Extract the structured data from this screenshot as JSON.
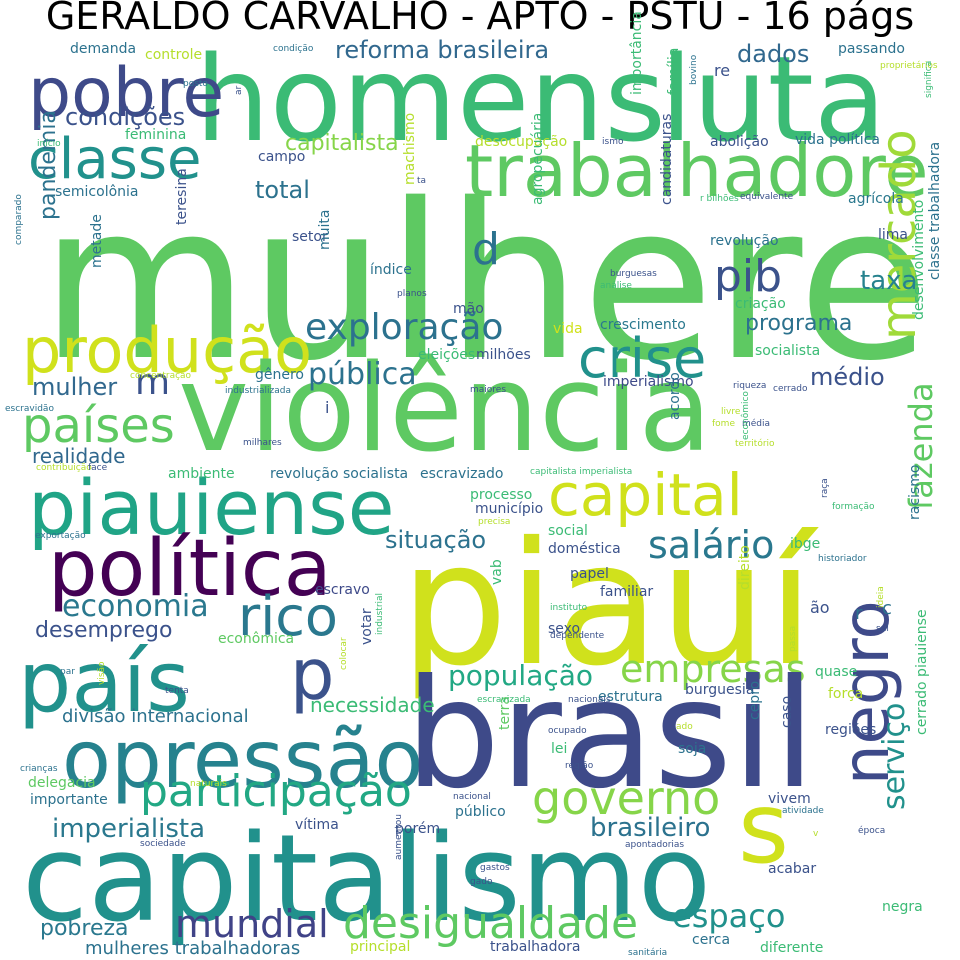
{
  "title": "GERALDO CARVALHO - APTO - PSTU - 16 págs",
  "words": [
    {
      "text": "mulhere",
      "color": "#5ec962"
    },
    {
      "text": "homens",
      "color": "#3bbb75"
    },
    {
      "text": "luta",
      "color": "#3bbb75"
    },
    {
      "text": "pobre",
      "color": "#3e4a89"
    },
    {
      "text": "classe",
      "color": "#21918c"
    },
    {
      "text": "trabalhadore",
      "color": "#5ec962"
    },
    {
      "text": "condições",
      "color": "#3b528b"
    },
    {
      "text": "reforma brasileira",
      "color": "#31688e"
    },
    {
      "text": "capitalista",
      "color": "#86d549"
    },
    {
      "text": "dados",
      "color": "#31688e"
    },
    {
      "text": "produção",
      "color": "#d0e11c"
    },
    {
      "text": "exploração",
      "color": "#2c728e"
    },
    {
      "text": "pib",
      "color": "#3b528b"
    },
    {
      "text": "crise",
      "color": "#21918c"
    },
    {
      "text": "violência",
      "color": "#5ec962"
    },
    {
      "text": "países",
      "color": "#5ec962"
    },
    {
      "text": "mercado",
      "color": "#a0da39"
    },
    {
      "text": "piauiense",
      "color": "#20a486"
    },
    {
      "text": "capital",
      "color": "#d0e11c"
    },
    {
      "text": "política",
      "color": "#440154"
    },
    {
      "text": "salário",
      "color": "#2a788e"
    },
    {
      "text": "economia",
      "color": "#2a788e"
    },
    {
      "text": "rico",
      "color": "#2a788e"
    },
    {
      "text": "piauí",
      "color": "#d0e11c"
    },
    {
      "text": "país",
      "color": "#21918c"
    },
    {
      "text": "p",
      "color": "#3b528b"
    },
    {
      "text": "empresas",
      "color": "#86d549"
    },
    {
      "text": "fazenda",
      "color": "#5ec962"
    },
    {
      "text": "opressão",
      "color": "#26828e"
    },
    {
      "text": "brasil",
      "color": "#3e4a89"
    },
    {
      "text": "participação",
      "color": "#22a884"
    },
    {
      "text": "governo",
      "color": "#86d549"
    },
    {
      "text": "negro",
      "color": "#3e4a89"
    },
    {
      "text": "imperialista",
      "color": "#2a788e"
    },
    {
      "text": "capitalismo",
      "color": "#21918c"
    },
    {
      "text": "s",
      "color": "#d0e11c"
    },
    {
      "text": "mundial",
      "color": "#404387"
    },
    {
      "text": "desigualdade",
      "color": "#5ec962"
    },
    {
      "text": "espaço",
      "color": "#21918c"
    },
    {
      "text": "brasileiro",
      "color": "#2c728e"
    },
    {
      "text": "serviço",
      "color": "#21918c"
    },
    {
      "text": "população",
      "color": "#22a884"
    },
    {
      "text": "situação",
      "color": "#2c728e"
    },
    {
      "text": "desemprego",
      "color": "#3b528b"
    },
    {
      "text": "pública",
      "color": "#2c728e"
    },
    {
      "text": "mulher",
      "color": "#31688e"
    },
    {
      "text": "programa",
      "color": "#2c728e"
    },
    {
      "text": "taxa",
      "color": "#26828e"
    },
    {
      "text": "d",
      "color": "#2c728e"
    },
    {
      "text": "m",
      "color": "#3b528b"
    },
    {
      "text": "médio",
      "color": "#3b528b"
    },
    {
      "text": "pandemia",
      "color": "#2c728e"
    },
    {
      "text": "total",
      "color": "#2c728e"
    },
    {
      "text": "realidade",
      "color": "#31688e"
    },
    {
      "text": "divisão internacional",
      "color": "#2c728e"
    },
    {
      "text": "necessidade",
      "color": "#3bbb75"
    },
    {
      "text": "pobreza",
      "color": "#2a788e"
    },
    {
      "text": "mulheres trabalhadoras",
      "color": "#2c728e"
    },
    {
      "text": "delegacia",
      "color": "#5ec962"
    },
    {
      "text": "importante",
      "color": "#2c728e"
    },
    {
      "text": "demanda",
      "color": "#2c728e"
    },
    {
      "text": "controle",
      "color": "#b5de2b"
    },
    {
      "text": "feminina",
      "color": "#3bbb75"
    },
    {
      "text": "semicolônia",
      "color": "#2c728e"
    },
    {
      "text": "campo",
      "color": "#3b528b"
    },
    {
      "text": "setor",
      "color": "#3b528b"
    },
    {
      "text": "muita",
      "color": "#2c728e"
    },
    {
      "text": "índice",
      "color": "#2c728e"
    },
    {
      "text": "mão",
      "color": "#3b528b"
    },
    {
      "text": "passando",
      "color": "#2c728e"
    },
    {
      "text": "vida política",
      "color": "#2c728e"
    },
    {
      "text": "abolição",
      "color": "#3b528b"
    },
    {
      "text": "desocupação",
      "color": "#b5de2b"
    },
    {
      "text": "agrícola",
      "color": "#2a788e"
    },
    {
      "text": "lima",
      "color": "#3b528b"
    },
    {
      "text": "revolução",
      "color": "#2c728e"
    },
    {
      "text": "criação",
      "color": "#3bbb75"
    },
    {
      "text": "crescimento",
      "color": "#2a788e"
    },
    {
      "text": "vida",
      "color": "#d0e11c"
    },
    {
      "text": "eleições",
      "color": "#3bbb75"
    },
    {
      "text": "milhões",
      "color": "#3b528b"
    },
    {
      "text": "socialista",
      "color": "#3bbb75"
    },
    {
      "text": "imperialismo",
      "color": "#3e4a89"
    },
    {
      "text": "gênero",
      "color": "#2c728e"
    },
    {
      "text": "ambiente",
      "color": "#3bbb75"
    },
    {
      "text": "revolução socialista",
      "color": "#2c728e"
    },
    {
      "text": "escravizado",
      "color": "#2c728e"
    },
    {
      "text": "processo",
      "color": "#3bbb75"
    },
    {
      "text": "município",
      "color": "#3b528b"
    },
    {
      "text": "social",
      "color": "#3bbb75"
    },
    {
      "text": "doméstica",
      "color": "#3b528b"
    },
    {
      "text": "ibge",
      "color": "#3bbb75"
    },
    {
      "text": "acordo",
      "color": "#2c728e"
    },
    {
      "text": "papel",
      "color": "#3b528b"
    },
    {
      "text": "familiar",
      "color": "#3b528b"
    },
    {
      "text": "escravo",
      "color": "#3e4a89"
    },
    {
      "text": "econômica",
      "color": "#5ec962"
    },
    {
      "text": "sexo",
      "color": "#3b528b"
    },
    {
      "text": "estrutura",
      "color": "#2c728e"
    },
    {
      "text": "burguesia",
      "color": "#3b528b"
    },
    {
      "text": "força",
      "color": "#b5de2b"
    },
    {
      "text": "quase",
      "color": "#3bbb75"
    },
    {
      "text": "regiões",
      "color": "#3b528b"
    },
    {
      "text": "lei",
      "color": "#3bbb75"
    },
    {
      "text": "soja",
      "color": "#2c728e"
    },
    {
      "text": "caso",
      "color": "#3b528b"
    },
    {
      "text": "vivem",
      "color": "#3b528b"
    },
    {
      "text": "público",
      "color": "#2c728e"
    },
    {
      "text": "vítima",
      "color": "#3b528b"
    },
    {
      "text": "porém",
      "color": "#3b528b"
    },
    {
      "text": "acabar",
      "color": "#3b528b"
    },
    {
      "text": "negra",
      "color": "#3bbb75"
    },
    {
      "text": "cerca",
      "color": "#2c728e"
    },
    {
      "text": "trabalhadora",
      "color": "#3b528b"
    },
    {
      "text": "principal",
      "color": "#b5de2b"
    },
    {
      "text": "diferente",
      "color": "#3bbb75"
    },
    {
      "text": "votar",
      "color": "#3b528b"
    },
    {
      "text": "terra",
      "color": "#5ec962"
    },
    {
      "text": "vab",
      "color": "#3bbb75"
    },
    {
      "text": "machismo",
      "color": "#b5de2b"
    },
    {
      "text": "agropecuária",
      "color": "#3bbb75"
    },
    {
      "text": "candidaturas",
      "color": "#3b528b"
    },
    {
      "text": "teresina",
      "color": "#3b528b"
    },
    {
      "text": "metade",
      "color": "#2c728e"
    },
    {
      "text": "importância",
      "color": "#3bbb75"
    },
    {
      "text": "família",
      "color": "#3bbb75"
    },
    {
      "text": "desenvolvimento",
      "color": "#3bbb75"
    },
    {
      "text": "classe trabalhadora",
      "color": "#2c728e"
    },
    {
      "text": "racismo",
      "color": "#2c728e"
    },
    {
      "text": "cerrado piauiense",
      "color": "#3bbb75"
    },
    {
      "text": "direito",
      "color": "#b5de2b"
    },
    {
      "text": "cepro",
      "color": "#2c728e"
    },
    {
      "text": "r",
      "color": "#2c728e"
    },
    {
      "text": "c",
      "color": "#2c728e"
    },
    {
      "text": "ão",
      "color": "#3b528b"
    },
    {
      "text": "i",
      "color": "#3b528b"
    },
    {
      "text": "condição",
      "color": "#2c728e"
    },
    {
      "text": "posto",
      "color": "#2c728e"
    },
    {
      "text": "ar",
      "color": "#3b528b"
    },
    {
      "text": "re",
      "color": "#3b528b"
    },
    {
      "text": "bovino",
      "color": "#2c728e"
    },
    {
      "text": "proprietários",
      "color": "#b5de2b"
    },
    {
      "text": "significa",
      "color": "#3bbb75"
    },
    {
      "text": "início",
      "color": "#3bbb75"
    },
    {
      "text": "ismo",
      "color": "#3b528b"
    },
    {
      "text": "ta",
      "color": "#3b528b"
    },
    {
      "text": "r bilhões",
      "color": "#3bbb75"
    },
    {
      "text": "equivalente",
      "color": "#3b528b"
    },
    {
      "text": "comparado",
      "color": "#2c728e"
    },
    {
      "text": "burguesas",
      "color": "#3b528b"
    },
    {
      "text": "análise",
      "color": "#3bbb75"
    },
    {
      "text": "planos",
      "color": "#3b528b"
    },
    {
      "text": "concentração",
      "color": "#b5de2b"
    },
    {
      "text": "industrializada",
      "color": "#2c728e"
    },
    {
      "text": "maiores",
      "color": "#3b528b"
    },
    {
      "text": "riqueza",
      "color": "#3b528b"
    },
    {
      "text": "cerrado",
      "color": "#3b528b"
    },
    {
      "text": "escravidão",
      "color": "#2c728e"
    },
    {
      "text": "milhares",
      "color": "#3b528b"
    },
    {
      "text": "livre",
      "color": "#b5de2b"
    },
    {
      "text": "média",
      "color": "#3b528b"
    },
    {
      "text": "fome",
      "color": "#b5de2b"
    },
    {
      "text": "território",
      "color": "#b5de2b"
    },
    {
      "text": "econômico",
      "color": "#3bbb75"
    },
    {
      "text": "contribuição",
      "color": "#b5de2b"
    },
    {
      "text": "face",
      "color": "#3b528b"
    },
    {
      "text": "capitalista imperialista",
      "color": "#3bbb75"
    },
    {
      "text": "raça",
      "color": "#3b528b"
    },
    {
      "text": "formação",
      "color": "#3bbb75"
    },
    {
      "text": "exportação",
      "color": "#2c728e"
    },
    {
      "text": "precisa",
      "color": "#b5de2b"
    },
    {
      "text": "historiador",
      "color": "#2c728e"
    },
    {
      "text": "instituto",
      "color": "#3bbb75"
    },
    {
      "text": "ideia",
      "color": "#b5de2b"
    },
    {
      "text": "sul",
      "color": "#3b528b"
    },
    {
      "text": "colocar",
      "color": "#b5de2b"
    },
    {
      "text": "industrial",
      "color": "#3bbb75"
    },
    {
      "text": "dependente",
      "color": "#3b528b"
    },
    {
      "text": "passa",
      "color": "#b5de2b"
    },
    {
      "text": "par",
      "color": "#2c728e"
    },
    {
      "text": "visão",
      "color": "#b5de2b"
    },
    {
      "text": "tenta",
      "color": "#3b528b"
    },
    {
      "text": "escravizada",
      "color": "#3bbb75"
    },
    {
      "text": "nacionais",
      "color": "#3b528b"
    },
    {
      "text": "ocupado",
      "color": "#3b528b"
    },
    {
      "text": "ado",
      "color": "#b5de2b"
    },
    {
      "text": "crianças",
      "color": "#2c728e"
    },
    {
      "text": "região",
      "color": "#3b528b"
    },
    {
      "text": "naturais",
      "color": "#b5de2b"
    },
    {
      "text": "nacional",
      "color": "#3b528b"
    },
    {
      "text": "atividade",
      "color": "#2c728e"
    },
    {
      "text": "sociedade",
      "color": "#3b528b"
    },
    {
      "text": "apontadorias",
      "color": "#3b528b"
    },
    {
      "text": "época",
      "color": "#3b528b"
    },
    {
      "text": "aumentou",
      "color": "#3b528b"
    },
    {
      "text": "gastos",
      "color": "#3b528b"
    },
    {
      "text": "gado",
      "color": "#3b528b"
    },
    {
      "text": "v",
      "color": "#b5de2b"
    },
    {
      "text": "sanitária",
      "color": "#2c728e"
    }
  ]
}
